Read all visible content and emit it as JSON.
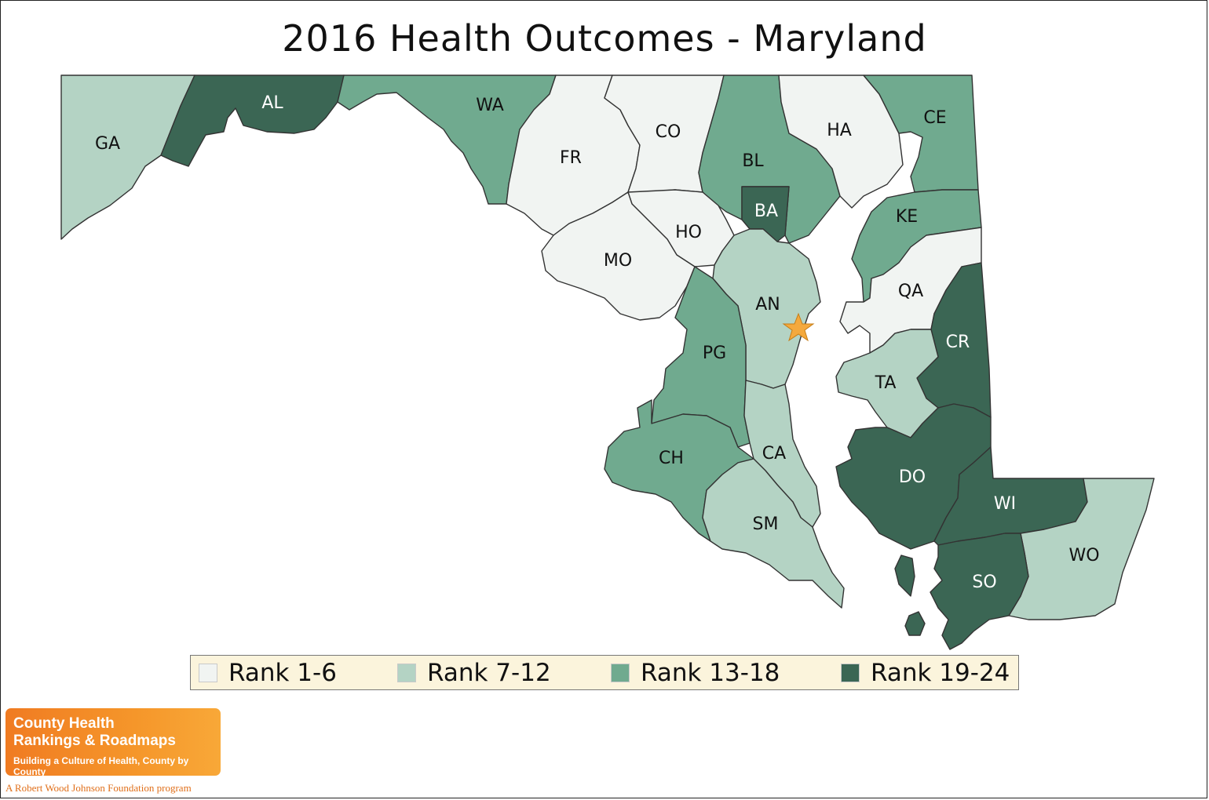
{
  "title": "2016 Health Outcomes - Maryland",
  "colors": {
    "rank_1_6": "#f1f4f2",
    "rank_7_12": "#b4d3c4",
    "rank_13_18": "#70aa8f",
    "rank_19_24": "#3b6654",
    "legend_bg": "#fbf4dc",
    "star": "#f4a93d",
    "logo": "#f07b22"
  },
  "legend": [
    {
      "label": "Rank 1-6",
      "tier": "rank_1_6"
    },
    {
      "label": "Rank 7-12",
      "tier": "rank_7_12"
    },
    {
      "label": "Rank 13-18",
      "tier": "rank_13_18"
    },
    {
      "label": "Rank 19-24",
      "tier": "rank_19_24"
    }
  ],
  "counties": [
    {
      "abbr": "GA",
      "tier": "rank_7_12"
    },
    {
      "abbr": "AL",
      "tier": "rank_19_24"
    },
    {
      "abbr": "WA",
      "tier": "rank_13_18"
    },
    {
      "abbr": "FR",
      "tier": "rank_1_6"
    },
    {
      "abbr": "CO",
      "tier": "rank_1_6"
    },
    {
      "abbr": "BL",
      "tier": "rank_13_18"
    },
    {
      "abbr": "HA",
      "tier": "rank_1_6"
    },
    {
      "abbr": "CE",
      "tier": "rank_13_18"
    },
    {
      "abbr": "BA",
      "tier": "rank_19_24"
    },
    {
      "abbr": "HO",
      "tier": "rank_1_6"
    },
    {
      "abbr": "MO",
      "tier": "rank_1_6"
    },
    {
      "abbr": "KE",
      "tier": "rank_13_18"
    },
    {
      "abbr": "QA",
      "tier": "rank_1_6"
    },
    {
      "abbr": "AN",
      "tier": "rank_7_12"
    },
    {
      "abbr": "PG",
      "tier": "rank_13_18"
    },
    {
      "abbr": "CR",
      "tier": "rank_19_24"
    },
    {
      "abbr": "TA",
      "tier": "rank_7_12"
    },
    {
      "abbr": "CA",
      "tier": "rank_7_12"
    },
    {
      "abbr": "CH",
      "tier": "rank_13_18"
    },
    {
      "abbr": "DO",
      "tier": "rank_19_24"
    },
    {
      "abbr": "WI",
      "tier": "rank_19_24"
    },
    {
      "abbr": "SM",
      "tier": "rank_7_12"
    },
    {
      "abbr": "WO",
      "tier": "rank_7_12"
    },
    {
      "abbr": "SO",
      "tier": "rank_19_24"
    }
  ],
  "capital_marker": "star-icon",
  "logo": {
    "line1": "County Health",
    "line2": "Rankings & Roadmaps",
    "tagline": "Building a Culture of Health, County by County",
    "sponsor": "A Robert Wood Johnson Foundation program"
  }
}
